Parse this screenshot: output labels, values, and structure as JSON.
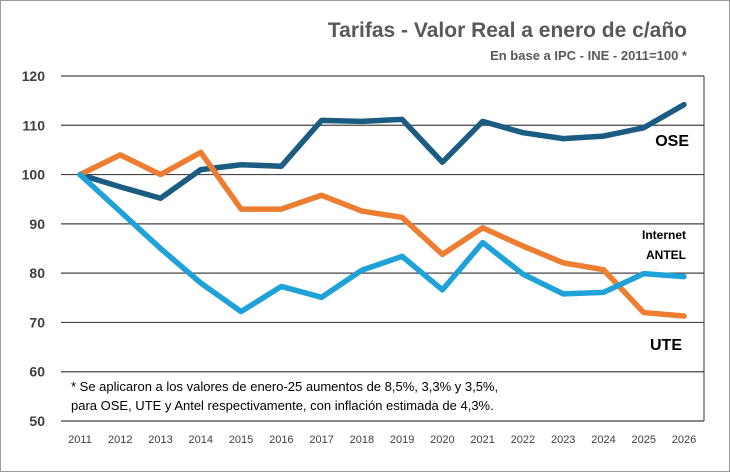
{
  "chart_data": {
    "type": "line",
    "title": "Tarifas - Valor Real  a enero de c/año",
    "subtitle": "En base a IPC - INE - 2011=100 *",
    "x": [
      2011,
      2012,
      2013,
      2014,
      2015,
      2016,
      2017,
      2018,
      2019,
      2020,
      2021,
      2022,
      2023,
      2024,
      2025,
      2026
    ],
    "ylim": [
      50,
      120
    ],
    "yticks": [
      50,
      60,
      70,
      80,
      90,
      100,
      110,
      120
    ],
    "grid": true,
    "series": [
      {
        "color": "#1b5c82",
        "values": [
          100,
          97.5,
          95.2,
          101,
          102,
          101.7,
          111,
          110.8,
          111.2,
          102.5,
          110.8,
          108.5,
          107.3,
          107.8,
          109.5,
          114.2
        ]
      },
      {
        "color": "#ed7d31",
        "values": [
          100,
          104,
          100,
          104.5,
          93,
          93,
          95.8,
          92.6,
          91.3,
          83.8,
          89.2,
          85.5,
          82.1,
          80.7,
          72,
          71.3
        ]
      },
      {
        "color": "#1ea2d8",
        "values": [
          100,
          92.5,
          85,
          78,
          72.2,
          77.3,
          75.1,
          80.6,
          83.4,
          76.6,
          86.2,
          79.8,
          75.8,
          76.1,
          79.9,
          79.3
        ]
      }
    ],
    "annotations": {
      "ose": "OSE",
      "antel_1": "Internet",
      "antel_2": "ANTEL",
      "ute": "UTE"
    },
    "note": [
      "* Se aplicaron a los valores de enero-25 aumentos de 8,5%, 3,3% y 3,5%,",
      "para OSE, UTE y Antel respectivamente, con inflación estimada de 4,3%."
    ]
  }
}
